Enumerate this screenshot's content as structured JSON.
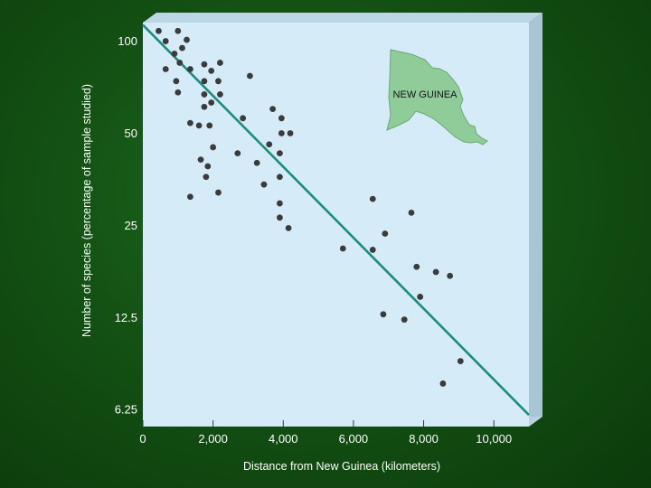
{
  "chart_data": {
    "type": "scatter",
    "title": "",
    "xlabel": "Distance from New Guinea (kilometers)",
    "ylabel": "Number of species (percentage of sample studied)",
    "xlim": [
      0,
      11000
    ],
    "ylim": [
      5.5,
      115
    ],
    "yscale": "log2",
    "x_ticks": [
      0,
      2000,
      4000,
      6000,
      8000,
      10000
    ],
    "x_tick_labels": [
      "0",
      "2,000",
      "4,000",
      "6,000",
      "8,000",
      "10,000"
    ],
    "y_ticks": [
      100,
      50,
      25,
      12.5,
      6.25
    ],
    "y_tick_labels": [
      "100",
      "50",
      "25",
      "12.5",
      "6.25"
    ],
    "grid": false,
    "legend": "none",
    "colors": {
      "plot_bg": "#d6ebf8",
      "points": "#3b3b3b",
      "trend": "#1e8c7a",
      "map": "#8fcc9a"
    },
    "inset_label": "NEW GUINEA",
    "trend_line": {
      "x": [
        0,
        11000
      ],
      "y": [
        113,
        6.0
      ]
    },
    "points": [
      {
        "x": 450,
        "y": 108
      },
      {
        "x": 1000,
        "y": 108
      },
      {
        "x": 650,
        "y": 100
      },
      {
        "x": 1250,
        "y": 101
      },
      {
        "x": 1120,
        "y": 95
      },
      {
        "x": 900,
        "y": 91
      },
      {
        "x": 1050,
        "y": 85
      },
      {
        "x": 2200,
        "y": 85
      },
      {
        "x": 650,
        "y": 81
      },
      {
        "x": 1350,
        "y": 81
      },
      {
        "x": 1750,
        "y": 84
      },
      {
        "x": 1950,
        "y": 80
      },
      {
        "x": 3050,
        "y": 77
      },
      {
        "x": 950,
        "y": 74
      },
      {
        "x": 1750,
        "y": 74
      },
      {
        "x": 2150,
        "y": 74
      },
      {
        "x": 1000,
        "y": 68
      },
      {
        "x": 1750,
        "y": 67
      },
      {
        "x": 2200,
        "y": 67
      },
      {
        "x": 1950,
        "y": 63
      },
      {
        "x": 1750,
        "y": 61
      },
      {
        "x": 3700,
        "y": 60
      },
      {
        "x": 2850,
        "y": 56
      },
      {
        "x": 3950,
        "y": 56
      },
      {
        "x": 1350,
        "y": 54
      },
      {
        "x": 1600,
        "y": 53
      },
      {
        "x": 1900,
        "y": 53
      },
      {
        "x": 3950,
        "y": 50
      },
      {
        "x": 4200,
        "y": 50
      },
      {
        "x": 3600,
        "y": 46
      },
      {
        "x": 2000,
        "y": 45
      },
      {
        "x": 2700,
        "y": 43
      },
      {
        "x": 3900,
        "y": 43
      },
      {
        "x": 1650,
        "y": 41
      },
      {
        "x": 1850,
        "y": 39
      },
      {
        "x": 3250,
        "y": 40
      },
      {
        "x": 1800,
        "y": 36
      },
      {
        "x": 3900,
        "y": 36
      },
      {
        "x": 3450,
        "y": 34
      },
      {
        "x": 2150,
        "y": 32
      },
      {
        "x": 1350,
        "y": 31
      },
      {
        "x": 3900,
        "y": 29.5
      },
      {
        "x": 6550,
        "y": 30.5
      },
      {
        "x": 7650,
        "y": 27.5
      },
      {
        "x": 3900,
        "y": 26.5
      },
      {
        "x": 4150,
        "y": 24.5
      },
      {
        "x": 6900,
        "y": 23.5
      },
      {
        "x": 5700,
        "y": 21
      },
      {
        "x": 6550,
        "y": 20.8
      },
      {
        "x": 7800,
        "y": 18.3
      },
      {
        "x": 8350,
        "y": 17.6
      },
      {
        "x": 8750,
        "y": 17.1
      },
      {
        "x": 7900,
        "y": 14.6
      },
      {
        "x": 6850,
        "y": 12.8
      },
      {
        "x": 7450,
        "y": 12.3
      },
      {
        "x": 9050,
        "y": 9.0
      },
      {
        "x": 8550,
        "y": 7.6
      }
    ]
  }
}
